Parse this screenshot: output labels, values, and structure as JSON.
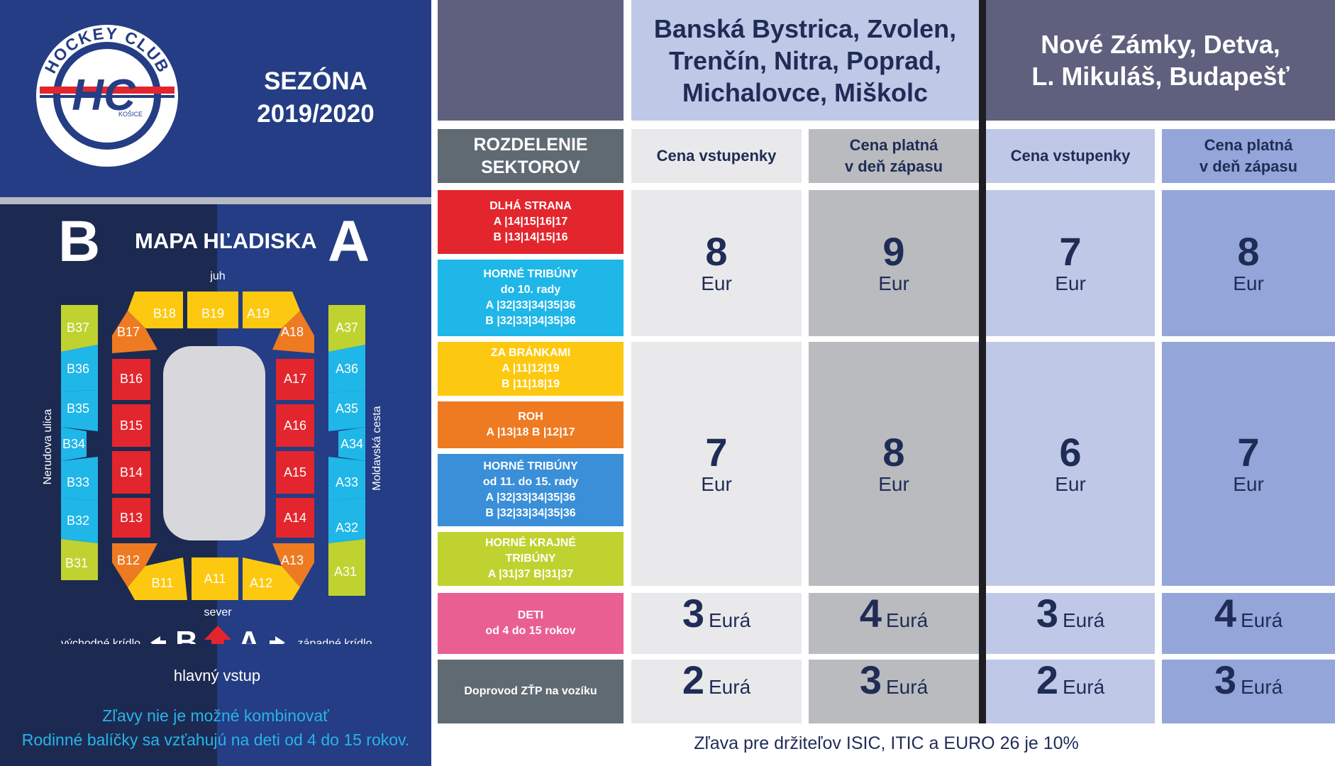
{
  "logo": {
    "top_text": "HOCKEY CLUB",
    "bottom_text": "KOŠICE",
    "monogram": "HC",
    "small_text": "KOŠICE"
  },
  "season": {
    "line1": "SEZÓNA",
    "line2": "2019/2020"
  },
  "map": {
    "title": "MAPA HĽADISKA",
    "letter_left": "B",
    "letter_right": "A",
    "south": "juh",
    "north": "sever",
    "west_street": "Nerudova ulica",
    "east_street": "Moldavská cesta",
    "east_wing": "východné krídlo",
    "west_wing": "západné krídlo",
    "entrance_letter_b": "B",
    "entrance_letter_a": "A",
    "main_entrance": "hlavný vstup",
    "sectors": {
      "B18": "B18",
      "B19": "B19",
      "A19": "A19",
      "B17": "B17",
      "A18": "A18",
      "B16": "B16",
      "B15": "B15",
      "B14": "B14",
      "B13": "B13",
      "A17": "A17",
      "A16": "A16",
      "A15": "A15",
      "A14": "A14",
      "B12": "B12",
      "A13": "A13",
      "B11": "B11",
      "A11": "A11",
      "A12": "A12",
      "B37": "B37",
      "B36": "B36",
      "B35": "B35",
      "B34": "B34",
      "B33": "B33",
      "B32": "B32",
      "B31": "B31",
      "A37": "A37",
      "A36": "A36",
      "A35": "A35",
      "A34": "A34",
      "A33": "A33",
      "A32": "A32",
      "A31": "A31"
    }
  },
  "notes": {
    "line1": "Zľavy nie je možné kombinovať",
    "line2": "Rodinné balíčky sa vzťahujú na deti od 4 do 15 rokov."
  },
  "header": {
    "group1": [
      "Banská Bystrica, Zvolen,",
      "Trenčín, Nitra, Poprad,",
      "Michalovce, Miškolc"
    ],
    "group2": [
      "Nové Zámky, Detva,",
      "L. Mikuláš, Budapešť"
    ]
  },
  "columns": {
    "sectors": [
      "ROZDELENIE",
      "SEKTOROV"
    ],
    "ticket_price": "Cena vstupenky",
    "match_day": [
      "Cena platná",
      "v deň zápasu"
    ]
  },
  "segments": {
    "long_side": [
      "DLHÁ STRANA",
      "A |14|15|16|17",
      "B |13|14|15|16"
    ],
    "upper_10": [
      "HORNÉ TRIBÚNY",
      "do 10. rady",
      "A |32|33|34|35|36",
      "B |32|33|34|35|36"
    ],
    "goals": [
      "ZA BRÁNKAMI",
      "A |11|12|19",
      "B |11|18|19"
    ],
    "corner": [
      "ROH",
      "A |13|18   B |12|17"
    ],
    "upper_15": [
      "HORNÉ TRIBÚNY",
      "od 11. do 15. rady",
      "A |32|33|34|35|36",
      "B |32|33|34|35|36"
    ],
    "outer": [
      "HORNÉ KRAJNÉ",
      "TRIBÚNY",
      "A |31|37   B|31|37"
    ],
    "kids": [
      "DETI",
      "od 4 do 15 rokov"
    ],
    "wheelchair": [
      "Doprovod ZŤP na vozíku"
    ]
  },
  "prices": {
    "row1": [
      {
        "num": "8",
        "cur": "Eur"
      },
      {
        "num": "9",
        "cur": "Eur"
      },
      {
        "num": "7",
        "cur": "Eur"
      },
      {
        "num": "8",
        "cur": "Eur"
      }
    ],
    "row2": [
      {
        "num": "7",
        "cur": "Eur"
      },
      {
        "num": "8",
        "cur": "Eur"
      },
      {
        "num": "6",
        "cur": "Eur"
      },
      {
        "num": "7",
        "cur": "Eur"
      }
    ],
    "kids": [
      {
        "num": "3",
        "cur": "Eurá"
      },
      {
        "num": "4",
        "cur": "Eurá"
      },
      {
        "num": "3",
        "cur": "Eurá"
      },
      {
        "num": "4",
        "cur": "Eurá"
      }
    ],
    "wheelchair": [
      {
        "num": "2",
        "cur": "Eurá"
      },
      {
        "num": "3",
        "cur": "Eurá"
      },
      {
        "num": "2",
        "cur": "Eurá"
      },
      {
        "num": "3",
        "cur": "Eurá"
      }
    ]
  },
  "footer": "Zľava pre držiteľov ISIC, ITIC a EURO 26 je 10%",
  "colors": {
    "navy": "#1c2a52",
    "blue": "#243d84",
    "red": "#e3262d",
    "cyan": "#1fb6e8",
    "yellow": "#fdc910",
    "orange": "#ee7a22",
    "mid_blue": "#3a8fd8",
    "lime": "#c0d22f",
    "pink": "#e95f91",
    "gray": "#606a73"
  }
}
